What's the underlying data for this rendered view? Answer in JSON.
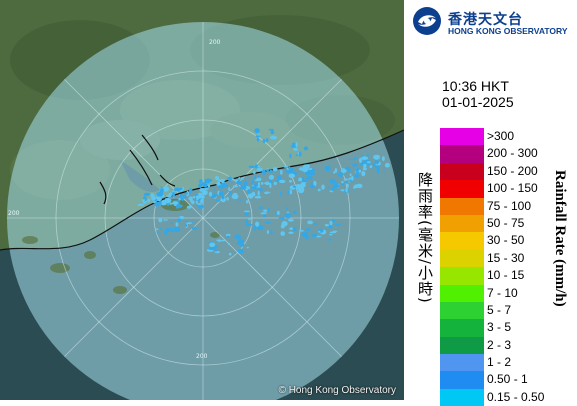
{
  "map": {
    "copyright": "© Hong Kong Observatory",
    "range_ring_labels": [
      "200",
      "200",
      "200"
    ],
    "colors": {
      "land": "#4e6b40",
      "sea": "#2b4c52",
      "coverage": "#8fd6e6",
      "echo": "#34a8e6",
      "echo_light": "#5fc6ef"
    }
  },
  "logo": {
    "name_zh": "香港天文台",
    "name_en": "HONG KONG OBSERVATORY",
    "emblem_icon": "hko-emblem-icon"
  },
  "timestamp": {
    "time": "10:36 HKT",
    "date": "01-01-2025"
  },
  "legend": {
    "title_zh": "降雨率(毫米/小時)",
    "title_en": "Rainfall Rate (mm/h)",
    "items": [
      {
        "label": ">300",
        "color": "#e600e6"
      },
      {
        "label": "200 - 300",
        "color": "#b4007f"
      },
      {
        "label": "150 - 200",
        "color": "#c8001e"
      },
      {
        "label": "100 - 150",
        "color": "#f00000"
      },
      {
        "label": "75 - 100",
        "color": "#f07800"
      },
      {
        "label": "50 - 75",
        "color": "#f0a000"
      },
      {
        "label": "30 - 50",
        "color": "#f5c800"
      },
      {
        "label": "15 - 30",
        "color": "#dcd200"
      },
      {
        "label": "10 - 15",
        "color": "#96e600"
      },
      {
        "label": "7 - 10",
        "color": "#50f000"
      },
      {
        "label": "5 - 7",
        "color": "#2dd232"
      },
      {
        "label": "3 - 5",
        "color": "#14b43c"
      },
      {
        "label": "2 - 3",
        "color": "#0f9b46"
      },
      {
        "label": "1 - 2",
        "color": "#5096f0"
      },
      {
        "label": "0.50 - 1",
        "color": "#1e8cf0"
      },
      {
        "label": "0.15 - 0.50",
        "color": "#00c8f5"
      }
    ]
  }
}
